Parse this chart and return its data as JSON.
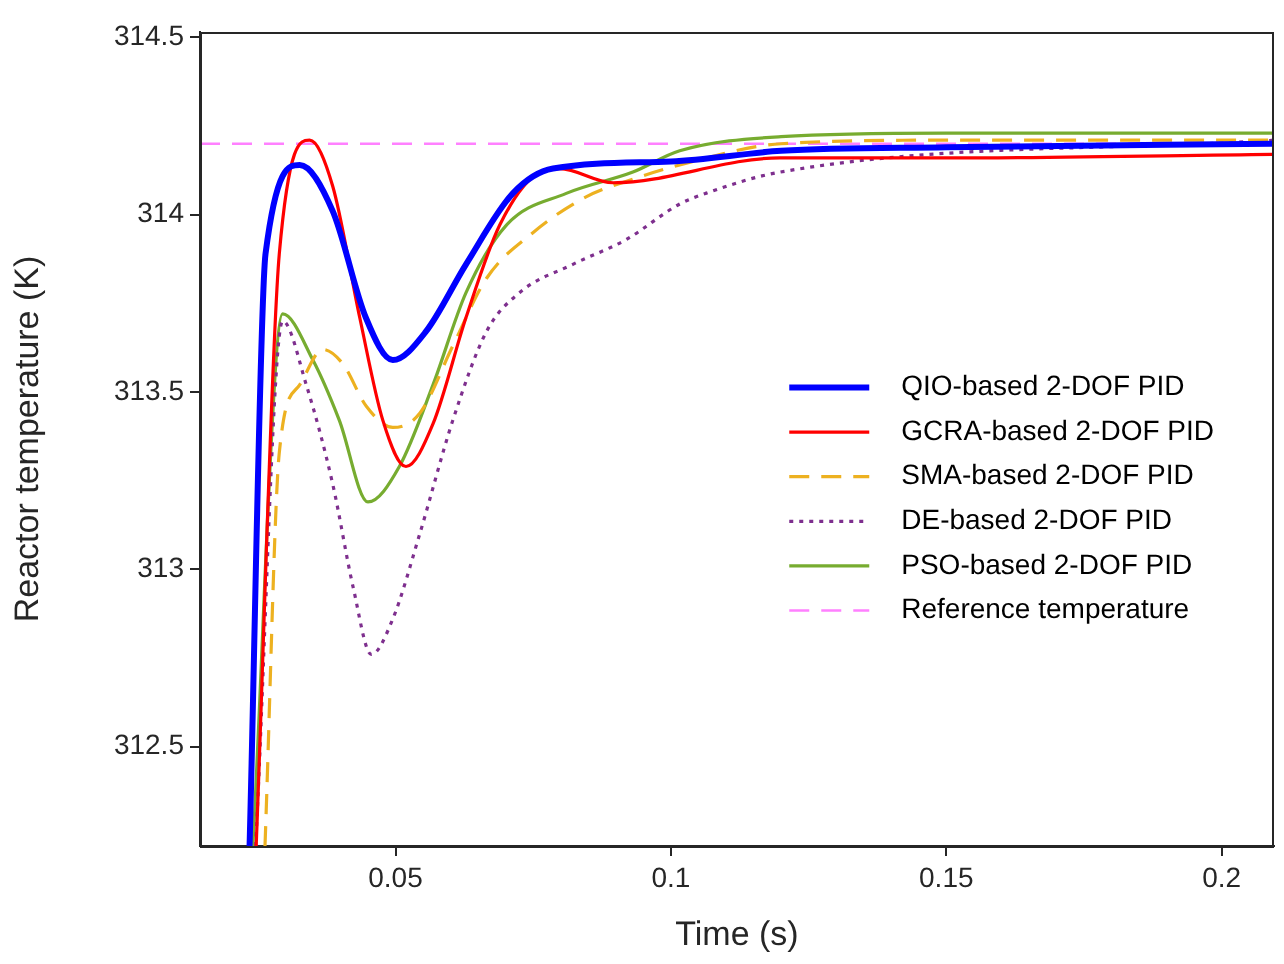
{
  "chart_data": {
    "type": "line",
    "xlabel": "Time (s)",
    "ylabel": "Reactor temperature (K)",
    "xlim": [
      0.0145,
      0.2095
    ],
    "xticks": [
      0.05,
      0.1,
      0.15,
      0.2
    ],
    "ylim": [
      312.22,
      314.515
    ],
    "yticks": [
      312.5,
      313,
      313.5,
      314,
      314.5
    ],
    "grid": false,
    "legend": "right",
    "marker": "none",
    "series": [
      {
        "name": "QIO-based 2-DOF PID",
        "color": "#0000ff",
        "line_style": "solid",
        "x": [
          0.0235,
          0.0264,
          0.0326,
          0.0386,
          0.0446,
          0.0495,
          0.0555,
          0.0628,
          0.0713,
          0.0786,
          0.1,
          0.12,
          0.15,
          0.2095
        ],
        "values": [
          312.22,
          313.89,
          314.14,
          314.01,
          313.71,
          313.59,
          313.67,
          313.86,
          314.06,
          314.13,
          314.15,
          314.18,
          314.19,
          314.2
        ]
      },
      {
        "name": "GCRA-based 2-DOF PID",
        "color": "#ff0000",
        "line_style": "solid",
        "x": [
          0.0247,
          0.0289,
          0.0344,
          0.0386,
          0.0435,
          0.0477,
          0.0519,
          0.0568,
          0.0628,
          0.0689,
          0.0762,
          0.0798,
          0.0895,
          0.1198,
          0.15,
          0.2095
        ],
        "values": [
          312.22,
          313.89,
          314.21,
          314.08,
          313.71,
          313.42,
          313.29,
          313.41,
          313.71,
          313.97,
          314.12,
          314.13,
          314.09,
          314.16,
          314.16,
          314.17
        ]
      },
      {
        "name": "SMA-based 2-DOF PID",
        "color": "#edb120",
        "line_style": "dashed",
        "x": [
          0.0263,
          0.0289,
          0.0326,
          0.0368,
          0.0404,
          0.0447,
          0.0495,
          0.0544,
          0.0604,
          0.0665,
          0.075,
          0.0846,
          0.0931,
          0.1016,
          0.12,
          0.15,
          0.2095
        ],
        "values": [
          312.22,
          313.33,
          313.52,
          313.62,
          313.58,
          313.46,
          313.4,
          313.44,
          313.63,
          313.82,
          313.95,
          314.05,
          314.1,
          314.14,
          314.2,
          314.21,
          314.21
        ]
      },
      {
        "name": "DE-based 2-DOF PID",
        "color": "#7e2f8e",
        "line_style": "dotted",
        "x": [
          0.0246,
          0.0295,
          0.0338,
          0.0386,
          0.0423,
          0.0456,
          0.0495,
          0.0544,
          0.0604,
          0.0665,
          0.0725,
          0.0822,
          0.0919,
          0.1016,
          0.1063,
          0.1198,
          0.2095
        ],
        "values": [
          312.22,
          313.7,
          313.52,
          313.24,
          312.95,
          312.76,
          312.86,
          313.1,
          313.42,
          313.67,
          313.78,
          313.86,
          313.93,
          314.03,
          314.06,
          314.12,
          314.21
        ]
      },
      {
        "name": "PSO-based 2-DOF PID",
        "color": "#77ac30",
        "line_style": "solid",
        "x": [
          0.0241,
          0.0295,
          0.035,
          0.0398,
          0.045,
          0.0507,
          0.0568,
          0.0628,
          0.0701,
          0.081,
          0.0931,
          0.1016,
          0.12,
          0.15,
          0.2095
        ],
        "values": [
          312.22,
          313.72,
          313.59,
          313.42,
          313.19,
          313.29,
          313.52,
          313.78,
          313.97,
          314.06,
          314.12,
          314.18,
          314.22,
          314.23,
          314.23
        ]
      }
    ],
    "ref_lines": [
      {
        "axis": "y",
        "value": 314.2,
        "label": "Reference temperature",
        "color": "#ff80ff",
        "line_style": "dashed"
      }
    ]
  }
}
